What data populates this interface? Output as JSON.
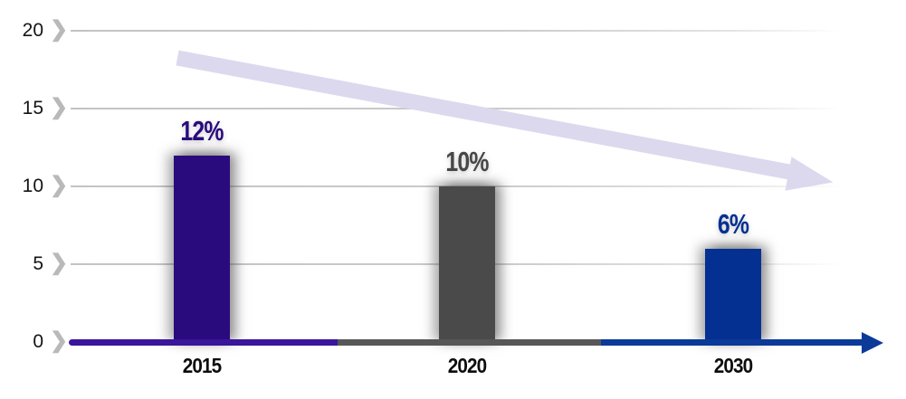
{
  "chart_data": {
    "type": "bar",
    "title": "",
    "xlabel": "",
    "ylabel": "",
    "categories": [
      "2015",
      "2020",
      "2030"
    ],
    "values": [
      12,
      10,
      6
    ],
    "value_labels": [
      "12%",
      "10%",
      "6%"
    ],
    "bar_colors": [
      "#2a0b7d",
      "#4a4a4a",
      "#043092"
    ],
    "value_label_colors": [
      "#2a0b7d",
      "#474747",
      "#043092"
    ],
    "axis_segment_colors": [
      "#3a169b",
      "#575757",
      "#0c3a99"
    ],
    "axis_arrow_color": "#0c3a99",
    "yticks": [
      0,
      5,
      10,
      15,
      20
    ],
    "ylim": [
      0,
      20
    ],
    "grid": true,
    "gridline_color": "#c9c9c9",
    "legend": false,
    "tick_marker": "chevron",
    "tick_marker_glyph": "❯",
    "tick_marker_color": "#b9b9b9",
    "axis_tick_label_color": "#141414",
    "category_label_color": "#0d0d0d",
    "trend_arrow": {
      "direction": "down",
      "color": "#dcd9ee"
    }
  }
}
